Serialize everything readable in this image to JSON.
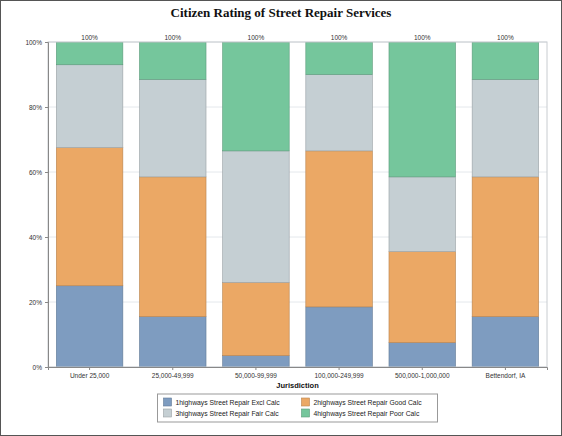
{
  "chart_data": {
    "type": "bar",
    "title": "Citizen Rating of Street Repair Services",
    "x_label": "Jurisdiction",
    "categories": [
      "Under 25,000",
      "25,000-49,999",
      "50,000-99,999",
      "100,000-249,999",
      "500,000-1,000,000",
      "Bettendorf, IA"
    ],
    "series": [
      {
        "name": "1highways Street Repair Excl Calc",
        "color": "#7e9cc0",
        "values": [
          25,
          15.5,
          3.5,
          18.5,
          7.5,
          15.5
        ]
      },
      {
        "name": "2highways Street Repair Good Calc",
        "color": "#eba865",
        "values": [
          42.5,
          43,
          22.5,
          48,
          28,
          43
        ]
      },
      {
        "name": "3highways Street Repair Fair Calc",
        "color": "#c5cfd3",
        "values": [
          25.5,
          30,
          40.5,
          23.5,
          23,
          30
        ]
      },
      {
        "name": "4highways Street Repair Poor Calc",
        "color": "#75c69c",
        "values": [
          7,
          11.5,
          33.5,
          10,
          41.5,
          11.5
        ]
      }
    ],
    "totals": [
      100,
      100,
      100,
      100,
      100,
      100
    ],
    "total_labels": [
      "100%",
      "100%",
      "100%",
      "100%",
      "100%",
      "100%"
    ],
    "ylim": [
      0,
      100
    ],
    "yticks": [
      {
        "value": 0,
        "label": "0%"
      },
      {
        "value": 20,
        "label": "20%"
      },
      {
        "value": 40,
        "label": "40%"
      },
      {
        "value": 60,
        "label": "60%"
      },
      {
        "value": 80,
        "label": "80%"
      },
      {
        "value": 100,
        "label": "100%"
      }
    ],
    "stacked": true,
    "grid": true,
    "legend": "bottom"
  }
}
